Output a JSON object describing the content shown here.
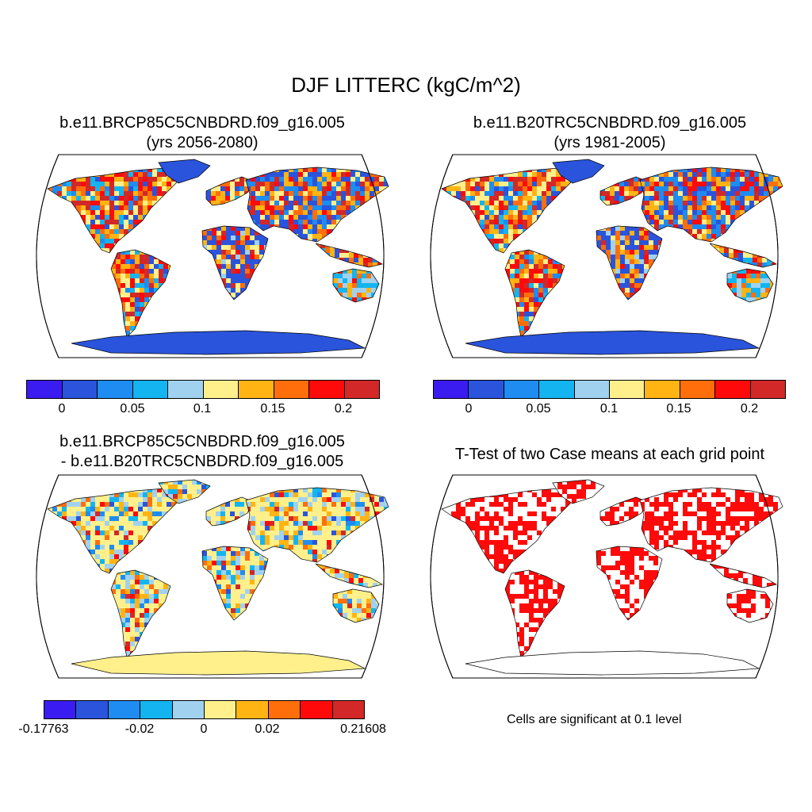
{
  "figure": {
    "title": "DJF LITTERC (kgC/m^2)"
  },
  "panels": [
    {
      "title_line1": "b.e11.BRCP85C5CNBDRD.f09_g16.005",
      "title_line2": "(yrs 2056-2080)"
    },
    {
      "title_line1": "b.e11.B20TRC5CNBDRD.f09_g16.005",
      "title_line2": "(yrs 1981-2005)"
    },
    {
      "title_line1": "b.e11.BRCP85C5CNBDRD.f09_g16.005",
      "title_line2": "- b.e11.B20TRC5CNBDRD.f09_g16.005"
    },
    {
      "title_line1": "T-Test of two Case means at each grid point",
      "note": "Cells are significant at 0.1 level"
    }
  ],
  "colorbars": {
    "absolute": {
      "colors": [
        "#3b1cf0",
        "#2a54dc",
        "#1e8cf0",
        "#14b4f0",
        "#a0d2f0",
        "#fff08c",
        "#ffb414",
        "#ff6e0a",
        "#ff0a0a",
        "#d22828"
      ],
      "ticks": [
        "0",
        "0.05",
        "0.1",
        "0.15",
        "0.2"
      ],
      "tick_values": [
        0,
        0.05,
        0.1,
        0.15,
        0.2
      ]
    },
    "difference": {
      "colors": [
        "#3b1cf0",
        "#2a54dc",
        "#1e8cf0",
        "#14b4f0",
        "#a0d2f0",
        "#fff08c",
        "#ffb414",
        "#ff6e0a",
        "#ff0a0a",
        "#d22828"
      ],
      "ticks": [
        "-0.17763",
        "-0.02",
        "0",
        "0.02",
        "0.21608"
      ]
    }
  },
  "map_colors": {
    "ocean": "#ffffff",
    "low_land": "#2a54dc",
    "high_land": "#d22828",
    "mid_land": "#ffb414",
    "diff_neutral": "#fff08c",
    "significant": "#ff0a0a"
  }
}
